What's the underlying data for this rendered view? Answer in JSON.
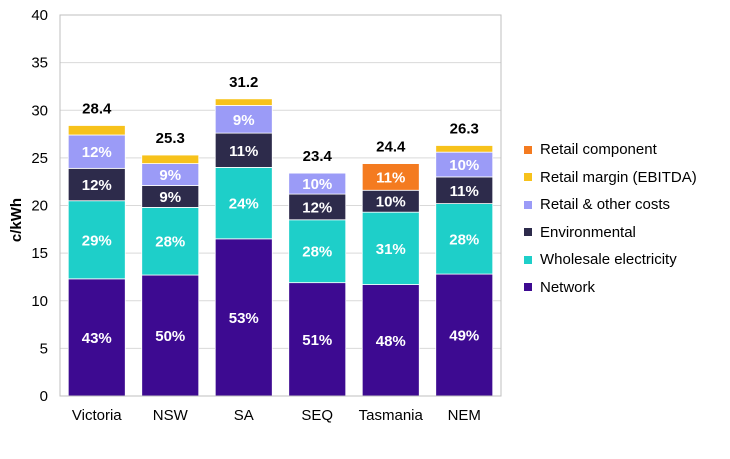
{
  "chart_data": {
    "type": "bar",
    "stacked": true,
    "title": "",
    "xlabel": "",
    "ylabel": "c/kWh",
    "ylim": [
      0,
      40
    ],
    "yticks": [
      0,
      5,
      10,
      15,
      20,
      25,
      30,
      35,
      40
    ],
    "grid": true,
    "legend_position": "right",
    "categories": [
      "Victoria",
      "NSW",
      "SA",
      "SEQ",
      "Tasmania",
      "NEM"
    ],
    "totals": [
      28.4,
      25.3,
      31.2,
      23.4,
      24.4,
      26.3
    ],
    "series": [
      {
        "name": "Network",
        "color": "#3d0a91",
        "values": [
          12.3,
          12.7,
          16.5,
          11.9,
          11.7,
          12.8
        ],
        "labels": [
          "43%",
          "50%",
          "53%",
          "51%",
          "48%",
          "49%"
        ]
      },
      {
        "name": "Wholesale electricity",
        "color": "#1ecfc9",
        "values": [
          8.2,
          7.1,
          7.5,
          6.6,
          7.6,
          7.4
        ],
        "labels": [
          "29%",
          "28%",
          "24%",
          "28%",
          "31%",
          "28%"
        ]
      },
      {
        "name": "Environmental",
        "color": "#2d2b4b",
        "values": [
          3.4,
          2.3,
          3.6,
          2.7,
          2.3,
          2.8
        ],
        "labels": [
          "12%",
          "9%",
          "11%",
          "12%",
          "10%",
          "11%"
        ]
      },
      {
        "name": "Retail & other costs",
        "color": "#9b9bf7",
        "values": [
          3.5,
          2.3,
          2.9,
          2.2,
          0,
          2.6
        ],
        "labels": [
          "12%",
          "9%",
          "9%",
          "10%",
          "",
          "10%"
        ]
      },
      {
        "name": "Retail margin (EBITDA)",
        "color": "#f7c21b",
        "values": [
          1.0,
          0.9,
          0.7,
          0,
          0,
          0.7
        ],
        "labels": [
          "",
          "",
          "",
          "",
          "",
          ""
        ]
      },
      {
        "name": "Retail component",
        "color": "#f47b20",
        "values": [
          0,
          0,
          0,
          0,
          2.8,
          0
        ],
        "labels": [
          "",
          "",
          "",
          "",
          "11%",
          ""
        ]
      }
    ]
  }
}
